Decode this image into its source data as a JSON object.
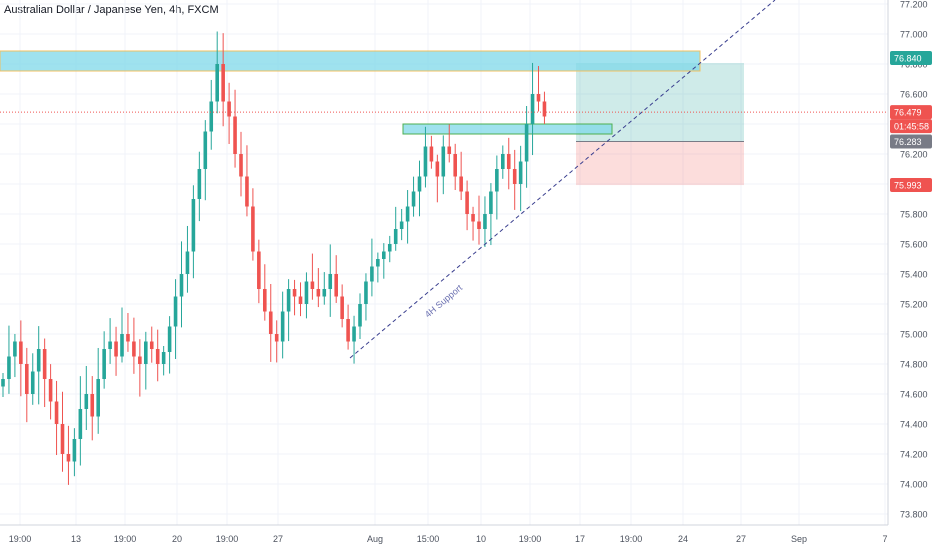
{
  "title": "Australian Dollar / Japanese Yen, 4h, FXCM",
  "colors": {
    "up": "#26a69a",
    "down": "#ef5350",
    "grid": "#f0f3fa",
    "axis_text": "#4c525e",
    "zone": "#7fd8e8",
    "zone_border": "#f0c060",
    "target": "#26a69a",
    "stop": "#ef5350",
    "last_price": "#ef5350",
    "trendline": "#3a3f8f"
  },
  "chart_data": {
    "type": "candlestick",
    "title": "Australian Dollar / Japanese Yen, 4h, FXCM",
    "ylim": [
      73.65,
      77.25
    ],
    "y_ticks": [
      "77.200",
      "77.000",
      "76.800",
      "76.600",
      "76.400",
      "76.200",
      "76.000",
      "75.800",
      "75.600",
      "75.400",
      "75.200",
      "75.000",
      "74.800",
      "74.600",
      "74.400",
      "74.200",
      "74.000",
      "73.800"
    ],
    "x_ticks": [
      "19:00",
      "13",
      "19:00",
      "20",
      "19:00",
      "27",
      "Aug",
      "15:00",
      "10",
      "19:00",
      "17",
      "19:00",
      "24",
      "27",
      "Sep",
      "7"
    ],
    "price_labels": {
      "target": "76.840",
      "last": "76.479",
      "countdown": "01:45:58",
      "entry": "76.283",
      "stop": "75.993"
    },
    "annotation": "4H Support",
    "close_path": [
      74.7,
      74.85,
      74.95,
      74.8,
      74.6,
      74.75,
      74.9,
      74.7,
      74.55,
      74.4,
      74.2,
      74.15,
      74.3,
      74.5,
      74.6,
      74.45,
      74.7,
      74.9,
      74.95,
      74.85,
      75.0,
      74.95,
      74.85,
      74.8,
      74.95,
      74.9,
      74.8,
      74.88,
      75.05,
      75.25,
      75.4,
      75.55,
      75.9,
      76.1,
      76.35,
      76.55,
      76.8,
      76.55,
      76.45,
      76.2,
      76.05,
      75.85,
      75.55,
      75.3,
      75.15,
      75.0,
      74.95,
      75.15,
      75.3,
      75.25,
      75.2,
      75.35,
      75.3,
      75.25,
      75.3,
      75.4,
      75.25,
      75.1,
      74.95,
      75.05,
      75.2,
      75.35,
      75.45,
      75.5,
      75.55,
      75.6,
      75.7,
      75.75,
      75.85,
      75.95,
      76.05,
      76.25,
      76.15,
      76.05,
      76.25,
      76.2,
      76.05,
      75.95,
      75.8,
      75.75,
      75.7,
      75.8,
      75.95,
      76.1,
      76.2,
      76.1,
      76.0,
      76.15,
      76.4,
      76.6,
      76.55,
      76.45
    ]
  }
}
